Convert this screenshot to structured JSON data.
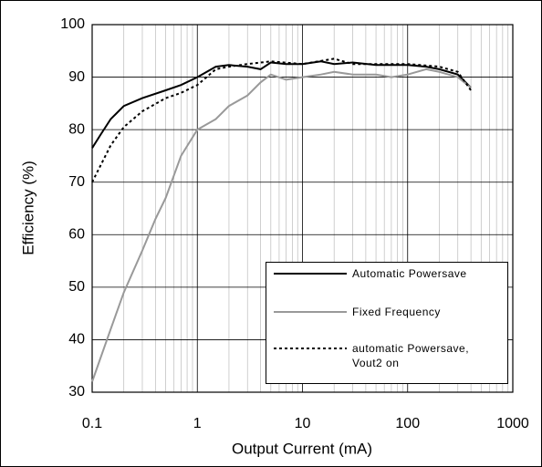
{
  "chart_data": {
    "type": "line",
    "x_label": "Output Current (mA)",
    "y_label": "Efficiency (%)",
    "xscale": "log",
    "xlim": [
      0.1,
      1000
    ],
    "xticks": [
      0.1,
      1,
      10,
      100,
      1000
    ],
    "ylim": [
      30,
      100
    ],
    "yticks": [
      30,
      40,
      50,
      60,
      70,
      80,
      90,
      100
    ],
    "grid": true,
    "minor_grid": true,
    "legend": "lower right",
    "series": [
      {
        "name": "Automatic Powersave",
        "color": "#000000",
        "dash": "solid",
        "x": [
          0.1,
          0.12,
          0.15,
          0.2,
          0.3,
          0.5,
          0.7,
          1,
          1.5,
          2,
          3,
          4,
          5,
          7,
          10,
          15,
          20,
          30,
          50,
          100,
          150,
          200,
          300,
          400
        ],
        "values": [
          76.5,
          79,
          82,
          84.5,
          86,
          87.5,
          88.5,
          90,
          92,
          92.3,
          92,
          91.5,
          92.8,
          92.5,
          92.5,
          93,
          92.5,
          92.8,
          92.3,
          92.3,
          92,
          91.5,
          90.5,
          88
        ]
      },
      {
        "name": "Fixed Frequency",
        "color": "#999999",
        "dash": "solid",
        "x": [
          0.1,
          0.15,
          0.2,
          0.3,
          0.4,
          0.5,
          0.7,
          1,
          1.5,
          2,
          3,
          4,
          5,
          7,
          10,
          15,
          20,
          30,
          50,
          70,
          100,
          150,
          200,
          300,
          400
        ],
        "values": [
          32,
          42,
          49,
          57,
          63,
          67,
          75,
          80,
          82,
          84.5,
          86.5,
          89,
          90.5,
          89.5,
          90,
          90.5,
          91,
          90.5,
          90.5,
          90,
          90.5,
          91.5,
          91,
          90,
          88
        ]
      },
      {
        "name": "automatic Powersave, Vout2 on",
        "color": "#000000",
        "dash": "dotted",
        "x": [
          0.1,
          0.15,
          0.2,
          0.3,
          0.5,
          0.7,
          1,
          1.5,
          2,
          3,
          5,
          10,
          20,
          30,
          50,
          100,
          200,
          300,
          400
        ],
        "values": [
          70,
          77,
          80.5,
          83.5,
          86,
          87,
          88.5,
          91.5,
          92,
          92.5,
          93,
          92.5,
          93.5,
          92.5,
          92.5,
          92.5,
          92,
          91,
          87.5
        ]
      }
    ]
  }
}
